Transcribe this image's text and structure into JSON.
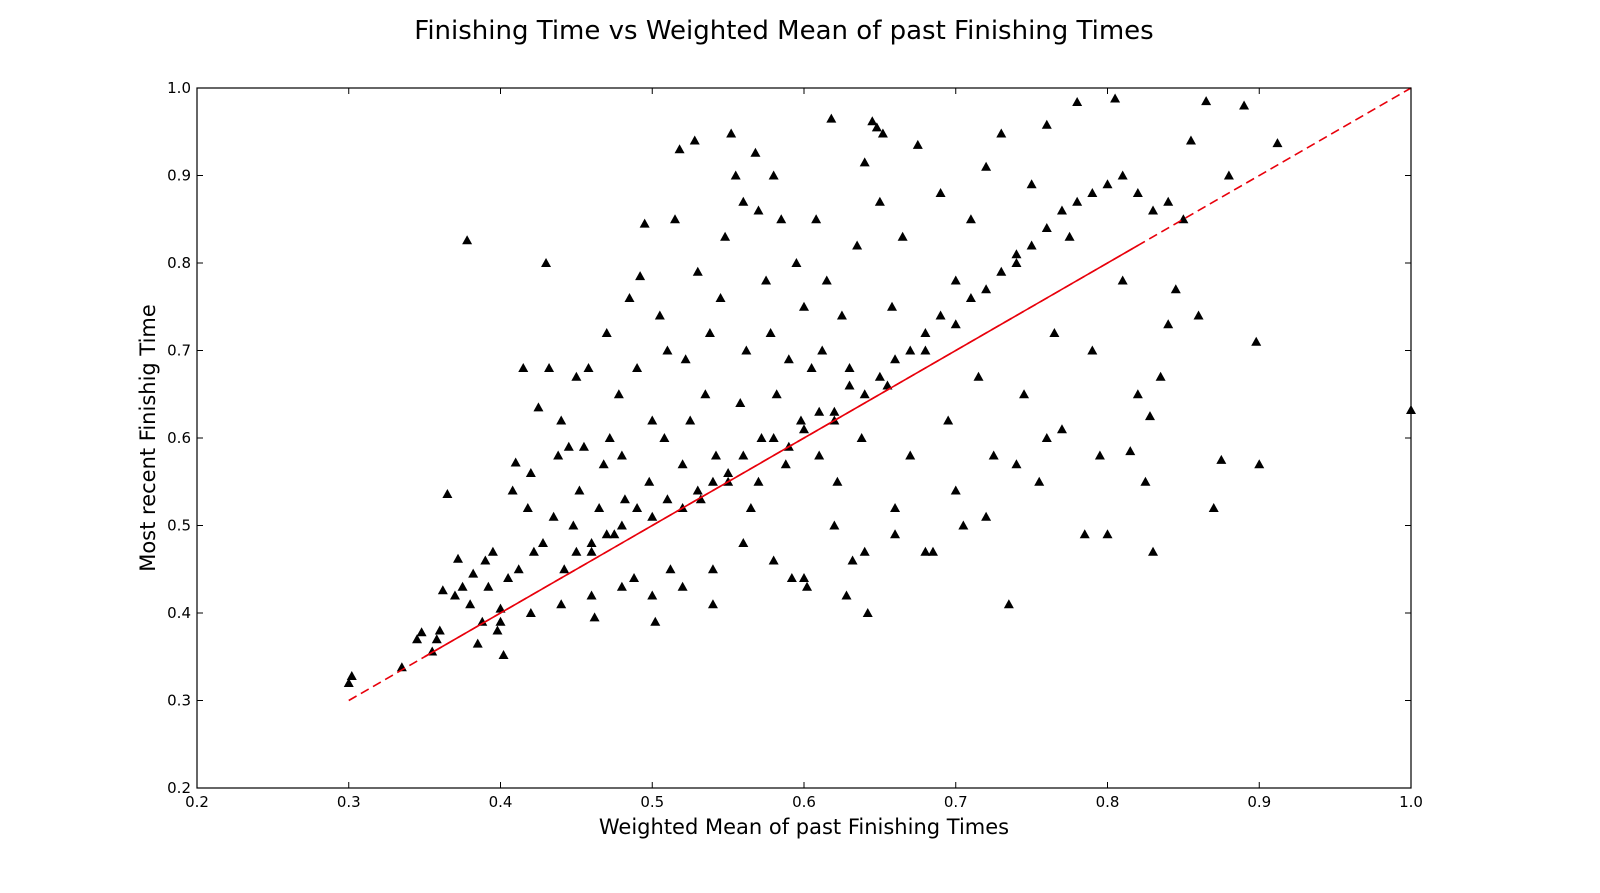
{
  "chart_data": {
    "type": "scatter",
    "title": "Finishing Time vs Weighted Mean of past Finishing Times",
    "xlabel": "Weighted Mean of past Finishing Times",
    "ylabel": "Most recent Finishig Time",
    "xlim": [
      0.2,
      1.0
    ],
    "ylim": [
      0.2,
      1.0
    ],
    "xticks": [
      "0.2",
      "0.3",
      "0.4",
      "0.5",
      "0.6",
      "0.7",
      "0.8",
      "0.9",
      "1.0"
    ],
    "yticks": [
      "0.2",
      "0.3",
      "0.4",
      "0.5",
      "0.6",
      "0.7",
      "0.8",
      "0.9",
      "1.0"
    ],
    "grid": false,
    "marker": "triangle",
    "marker_color": "#000000",
    "reference_line": {
      "x": [
        0.3,
        1.0
      ],
      "y": [
        0.3,
        1.0
      ],
      "style": "dashed",
      "color": "#e8000b"
    },
    "fit_line": {
      "x": [
        0.35,
        0.82
      ],
      "y": [
        0.35,
        0.82
      ],
      "style": "solid",
      "color": "#e8000b"
    },
    "points": [
      [
        0.3,
        0.32
      ],
      [
        0.302,
        0.328
      ],
      [
        0.335,
        0.338
      ],
      [
        0.345,
        0.37
      ],
      [
        0.348,
        0.378
      ],
      [
        0.355,
        0.356
      ],
      [
        0.358,
        0.37
      ],
      [
        0.36,
        0.38
      ],
      [
        0.362,
        0.426
      ],
      [
        0.365,
        0.536
      ],
      [
        0.37,
        0.42
      ],
      [
        0.372,
        0.462
      ],
      [
        0.375,
        0.43
      ],
      [
        0.378,
        0.826
      ],
      [
        0.38,
        0.41
      ],
      [
        0.382,
        0.445
      ],
      [
        0.385,
        0.365
      ],
      [
        0.388,
        0.39
      ],
      [
        0.39,
        0.46
      ],
      [
        0.392,
        0.43
      ],
      [
        0.395,
        0.47
      ],
      [
        0.398,
        0.38
      ],
      [
        0.4,
        0.405
      ],
      [
        0.402,
        0.352
      ],
      [
        0.405,
        0.44
      ],
      [
        0.408,
        0.54
      ],
      [
        0.41,
        0.572
      ],
      [
        0.412,
        0.45
      ],
      [
        0.415,
        0.68
      ],
      [
        0.418,
        0.52
      ],
      [
        0.42,
        0.56
      ],
      [
        0.422,
        0.47
      ],
      [
        0.425,
        0.635
      ],
      [
        0.428,
        0.48
      ],
      [
        0.43,
        0.8
      ],
      [
        0.432,
        0.68
      ],
      [
        0.435,
        0.51
      ],
      [
        0.438,
        0.58
      ],
      [
        0.44,
        0.62
      ],
      [
        0.442,
        0.45
      ],
      [
        0.445,
        0.59
      ],
      [
        0.448,
        0.5
      ],
      [
        0.45,
        0.67
      ],
      [
        0.452,
        0.54
      ],
      [
        0.455,
        0.59
      ],
      [
        0.458,
        0.68
      ],
      [
        0.46,
        0.47
      ],
      [
        0.462,
        0.395
      ],
      [
        0.465,
        0.52
      ],
      [
        0.468,
        0.57
      ],
      [
        0.47,
        0.72
      ],
      [
        0.472,
        0.6
      ],
      [
        0.475,
        0.49
      ],
      [
        0.478,
        0.65
      ],
      [
        0.48,
        0.58
      ],
      [
        0.482,
        0.53
      ],
      [
        0.485,
        0.76
      ],
      [
        0.488,
        0.44
      ],
      [
        0.49,
        0.68
      ],
      [
        0.492,
        0.785
      ],
      [
        0.495,
        0.845
      ],
      [
        0.498,
        0.55
      ],
      [
        0.5,
        0.62
      ],
      [
        0.502,
        0.39
      ],
      [
        0.505,
        0.74
      ],
      [
        0.508,
        0.6
      ],
      [
        0.51,
        0.7
      ],
      [
        0.512,
        0.45
      ],
      [
        0.515,
        0.85
      ],
      [
        0.518,
        0.93
      ],
      [
        0.52,
        0.57
      ],
      [
        0.522,
        0.69
      ],
      [
        0.525,
        0.62
      ],
      [
        0.528,
        0.94
      ],
      [
        0.53,
        0.79
      ],
      [
        0.532,
        0.53
      ],
      [
        0.535,
        0.65
      ],
      [
        0.538,
        0.72
      ],
      [
        0.54,
        0.41
      ],
      [
        0.542,
        0.58
      ],
      [
        0.545,
        0.76
      ],
      [
        0.548,
        0.83
      ],
      [
        0.55,
        0.55
      ],
      [
        0.552,
        0.948
      ],
      [
        0.555,
        0.9
      ],
      [
        0.558,
        0.64
      ],
      [
        0.56,
        0.87
      ],
      [
        0.562,
        0.7
      ],
      [
        0.565,
        0.52
      ],
      [
        0.568,
        0.926
      ],
      [
        0.57,
        0.86
      ],
      [
        0.572,
        0.6
      ],
      [
        0.575,
        0.78
      ],
      [
        0.578,
        0.72
      ],
      [
        0.58,
        0.9
      ],
      [
        0.582,
        0.65
      ],
      [
        0.585,
        0.85
      ],
      [
        0.588,
        0.57
      ],
      [
        0.59,
        0.69
      ],
      [
        0.592,
        0.44
      ],
      [
        0.595,
        0.8
      ],
      [
        0.598,
        0.62
      ],
      [
        0.6,
        0.75
      ],
      [
        0.602,
        0.43
      ],
      [
        0.605,
        0.68
      ],
      [
        0.608,
        0.85
      ],
      [
        0.61,
        0.58
      ],
      [
        0.612,
        0.7
      ],
      [
        0.615,
        0.78
      ],
      [
        0.618,
        0.965
      ],
      [
        0.62,
        0.63
      ],
      [
        0.622,
        0.55
      ],
      [
        0.625,
        0.74
      ],
      [
        0.628,
        0.42
      ],
      [
        0.63,
        0.68
      ],
      [
        0.632,
        0.46
      ],
      [
        0.635,
        0.82
      ],
      [
        0.638,
        0.6
      ],
      [
        0.64,
        0.915
      ],
      [
        0.642,
        0.4
      ],
      [
        0.645,
        0.962
      ],
      [
        0.648,
        0.955
      ],
      [
        0.65,
        0.87
      ],
      [
        0.652,
        0.948
      ],
      [
        0.655,
        0.66
      ],
      [
        0.658,
        0.75
      ],
      [
        0.66,
        0.52
      ],
      [
        0.665,
        0.83
      ],
      [
        0.67,
        0.58
      ],
      [
        0.675,
        0.935
      ],
      [
        0.68,
        0.7
      ],
      [
        0.685,
        0.47
      ],
      [
        0.69,
        0.88
      ],
      [
        0.695,
        0.62
      ],
      [
        0.7,
        0.78
      ],
      [
        0.705,
        0.5
      ],
      [
        0.71,
        0.85
      ],
      [
        0.715,
        0.67
      ],
      [
        0.72,
        0.91
      ],
      [
        0.725,
        0.58
      ],
      [
        0.73,
        0.948
      ],
      [
        0.735,
        0.41
      ],
      [
        0.74,
        0.8
      ],
      [
        0.745,
        0.65
      ],
      [
        0.75,
        0.89
      ],
      [
        0.755,
        0.55
      ],
      [
        0.76,
        0.958
      ],
      [
        0.765,
        0.72
      ],
      [
        0.77,
        0.61
      ],
      [
        0.775,
        0.83
      ],
      [
        0.78,
        0.984
      ],
      [
        0.785,
        0.49
      ],
      [
        0.79,
        0.7
      ],
      [
        0.795,
        0.58
      ],
      [
        0.8,
        0.49
      ],
      [
        0.805,
        0.988
      ],
      [
        0.81,
        0.78
      ],
      [
        0.815,
        0.585
      ],
      [
        0.82,
        0.65
      ],
      [
        0.825,
        0.55
      ],
      [
        0.83,
        0.47
      ],
      [
        0.835,
        0.67
      ],
      [
        0.84,
        0.73
      ],
      [
        0.845,
        0.77
      ],
      [
        0.85,
        0.85
      ],
      [
        0.855,
        0.94
      ],
      [
        0.86,
        0.74
      ],
      [
        0.865,
        0.985
      ],
      [
        0.87,
        0.52
      ],
      [
        0.875,
        0.575
      ],
      [
        0.88,
        0.9
      ],
      [
        0.89,
        0.98
      ],
      [
        0.898,
        0.71
      ],
      [
        0.9,
        0.57
      ],
      [
        0.912,
        0.937
      ],
      [
        0.828,
        0.625
      ],
      [
        0.76,
        0.6
      ],
      [
        0.74,
        0.57
      ],
      [
        0.72,
        0.51
      ],
      [
        0.7,
        0.54
      ],
      [
        0.68,
        0.47
      ],
      [
        0.66,
        0.49
      ],
      [
        0.64,
        0.47
      ],
      [
        0.62,
        0.5
      ],
      [
        0.6,
        0.44
      ],
      [
        0.58,
        0.46
      ],
      [
        0.56,
        0.48
      ],
      [
        0.54,
        0.45
      ],
      [
        0.52,
        0.43
      ],
      [
        0.5,
        0.42
      ],
      [
        0.48,
        0.43
      ],
      [
        0.46,
        0.42
      ],
      [
        0.44,
        0.41
      ],
      [
        0.42,
        0.4
      ],
      [
        0.4,
        0.39
      ],
      [
        0.55,
        0.56
      ],
      [
        0.56,
        0.58
      ],
      [
        0.57,
        0.55
      ],
      [
        0.58,
        0.6
      ],
      [
        0.59,
        0.59
      ],
      [
        0.6,
        0.61
      ],
      [
        0.61,
        0.63
      ],
      [
        0.62,
        0.62
      ],
      [
        0.63,
        0.66
      ],
      [
        0.64,
        0.65
      ],
      [
        0.65,
        0.67
      ],
      [
        0.66,
        0.69
      ],
      [
        0.67,
        0.7
      ],
      [
        0.68,
        0.72
      ],
      [
        0.69,
        0.74
      ],
      [
        0.7,
        0.73
      ],
      [
        0.71,
        0.76
      ],
      [
        0.72,
        0.77
      ],
      [
        0.73,
        0.79
      ],
      [
        0.74,
        0.81
      ],
      [
        0.75,
        0.82
      ],
      [
        0.76,
        0.84
      ],
      [
        0.77,
        0.86
      ],
      [
        0.78,
        0.87
      ],
      [
        0.79,
        0.88
      ],
      [
        0.8,
        0.89
      ],
      [
        0.81,
        0.9
      ],
      [
        0.82,
        0.88
      ],
      [
        0.83,
        0.86
      ],
      [
        0.84,
        0.87
      ],
      [
        0.5,
        0.51
      ],
      [
        0.51,
        0.53
      ],
      [
        0.52,
        0.52
      ],
      [
        0.53,
        0.54
      ],
      [
        0.54,
        0.55
      ],
      [
        0.47,
        0.49
      ],
      [
        0.48,
        0.5
      ],
      [
        0.49,
        0.52
      ],
      [
        0.46,
        0.48
      ],
      [
        0.45,
        0.47
      ],
      [
        1.0,
        0.632
      ]
    ]
  }
}
